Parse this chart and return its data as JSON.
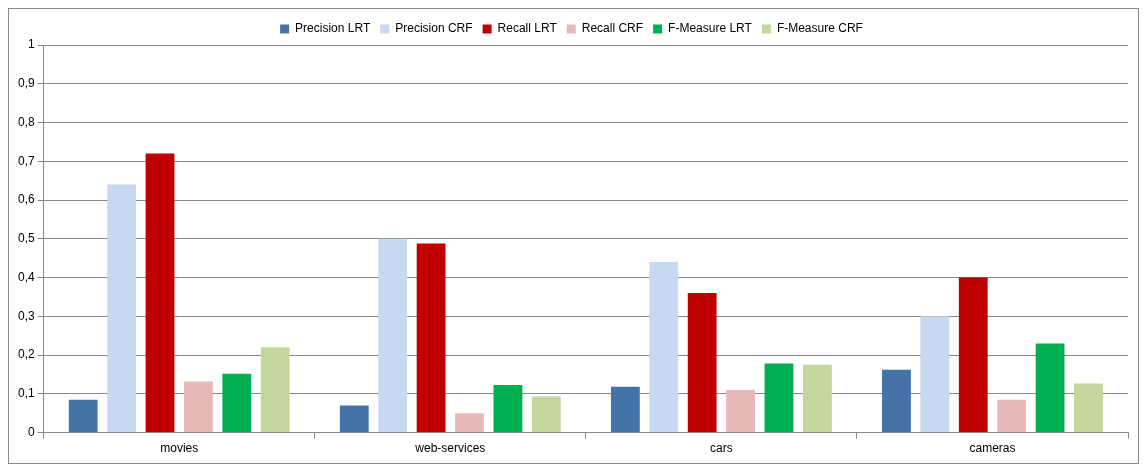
{
  "chart_data": {
    "type": "bar",
    "categories": [
      "movies",
      "web-services",
      "cars",
      "cameras"
    ],
    "series": [
      {
        "name": "Precision LRT",
        "color": "#4572a7",
        "values": [
          0.085,
          0.07,
          0.118,
          0.162
        ]
      },
      {
        "name": "Precision CRF",
        "color": "#c6d9f1",
        "values": [
          0.64,
          0.5,
          0.44,
          0.3
        ]
      },
      {
        "name": "Recall LRT",
        "color": "#c00000",
        "values": [
          0.72,
          0.488,
          0.36,
          0.4
        ]
      },
      {
        "name": "Recall CRF",
        "color": "#e6b9b8",
        "values": [
          0.132,
          0.05,
          0.11,
          0.085
        ]
      },
      {
        "name": "F-Measure LRT",
        "color": "#00b050",
        "values": [
          0.152,
          0.123,
          0.178,
          0.23
        ]
      },
      {
        "name": "F-Measure CRF",
        "color": "#c3d69b",
        "values": [
          0.22,
          0.093,
          0.175,
          0.127
        ]
      }
    ],
    "ylim": [
      0,
      1
    ],
    "yticks": [
      0,
      {
        "value": 0.1,
        "label": "0,1"
      },
      {
        "value": 0.2,
        "label": "0,2"
      },
      {
        "value": 0.3,
        "label": "0,3"
      },
      {
        "value": 0.4,
        "label": "0,4"
      },
      {
        "value": 0.5,
        "label": "0,5"
      },
      {
        "value": 0.6,
        "label": "0,6"
      },
      {
        "value": 0.7,
        "label": "0,7"
      },
      {
        "value": 0.8,
        "label": "0,8"
      },
      {
        "value": 0.9,
        "label": "0,9"
      },
      1
    ],
    "grid": "y",
    "legend": "top"
  }
}
